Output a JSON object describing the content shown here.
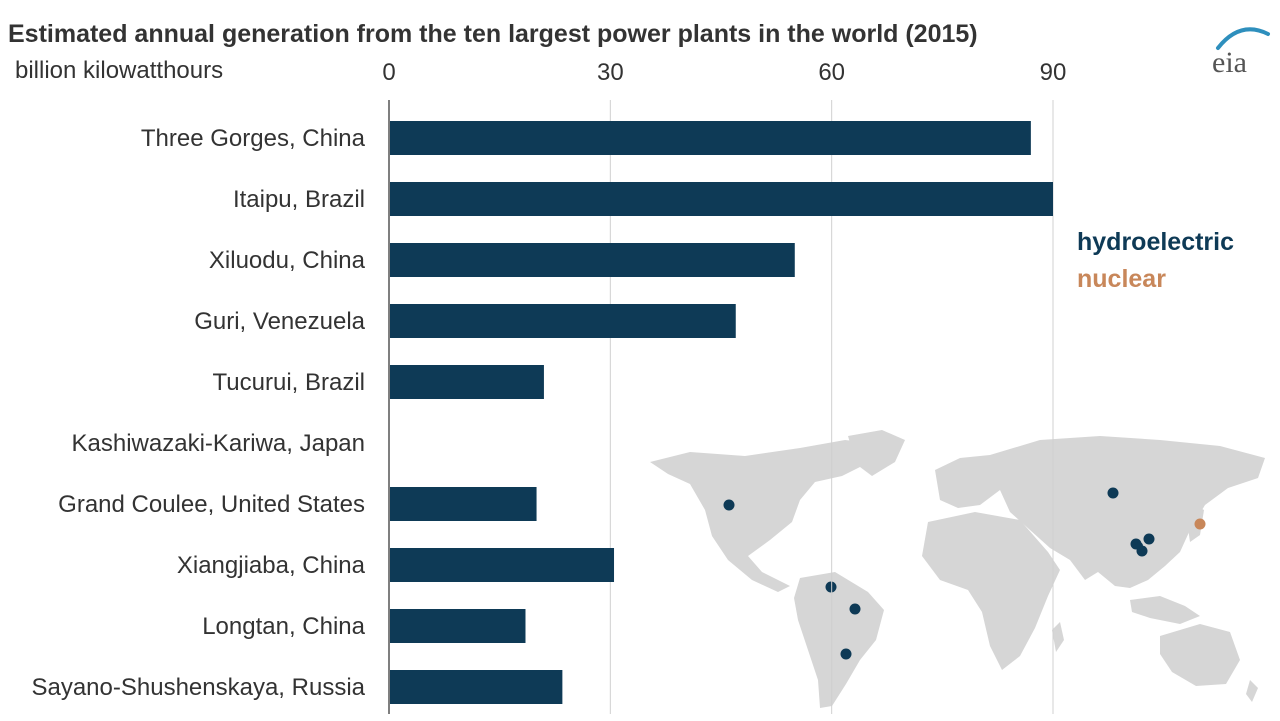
{
  "title": "Estimated annual generation from the ten largest power plants in the world (2015)",
  "unit_label": "billion kilowatthours",
  "logo_text": "eia",
  "colors": {
    "hydroelectric": "#0e3a56",
    "nuclear": "#c8875a",
    "grid": "#d0d0d0",
    "axis": "#555555",
    "land": "#d6d6d6",
    "logo_accent": "#2e8fbd"
  },
  "legend": [
    {
      "label": "hydroelectric",
      "color_key": "hydroelectric"
    },
    {
      "label": "nuclear",
      "color_key": "nuclear"
    }
  ],
  "map": {
    "description_icon": "world-map",
    "plant_markers": [
      {
        "region": "western-us",
        "type": "hydroelectric"
      },
      {
        "region": "siberia-russia",
        "type": "hydroelectric"
      },
      {
        "region": "japan",
        "type": "nuclear"
      },
      {
        "region": "china-1",
        "type": "hydroelectric"
      },
      {
        "region": "china-2",
        "type": "hydroelectric"
      },
      {
        "region": "china-3",
        "type": "hydroelectric"
      },
      {
        "region": "china-4",
        "type": "hydroelectric"
      },
      {
        "region": "venezuela",
        "type": "hydroelectric"
      },
      {
        "region": "brazil-north",
        "type": "hydroelectric"
      },
      {
        "region": "brazil-south",
        "type": "hydroelectric"
      }
    ]
  },
  "chart_data": {
    "type": "bar",
    "orientation": "horizontal",
    "title": "Estimated annual generation from the ten largest power plants in the world (2015)",
    "xlabel": "billion kilowatthours",
    "ylabel": "",
    "xlim": [
      0,
      90
    ],
    "x_ticks": [
      0,
      30,
      60,
      90
    ],
    "grid": true,
    "legend_position": "right",
    "categories": [
      "Three Gorges, China",
      "Itaipu, Brazil",
      "Xiluodu, China",
      "Guri, Venezuela",
      "Tucurui, Brazil",
      "Kashiwazaki-Kariwa, Japan",
      "Grand Coulee, United States",
      "Xiangjiaba, China",
      "Longtan, China",
      "Sayano-Shushenskaya, Russia"
    ],
    "values": [
      87,
      90,
      55,
      47,
      21,
      0,
      20,
      30.5,
      18.5,
      23.5
    ],
    "types": [
      "hydroelectric",
      "hydroelectric",
      "hydroelectric",
      "hydroelectric",
      "hydroelectric",
      "nuclear",
      "hydroelectric",
      "hydroelectric",
      "hydroelectric",
      "hydroelectric"
    ]
  }
}
